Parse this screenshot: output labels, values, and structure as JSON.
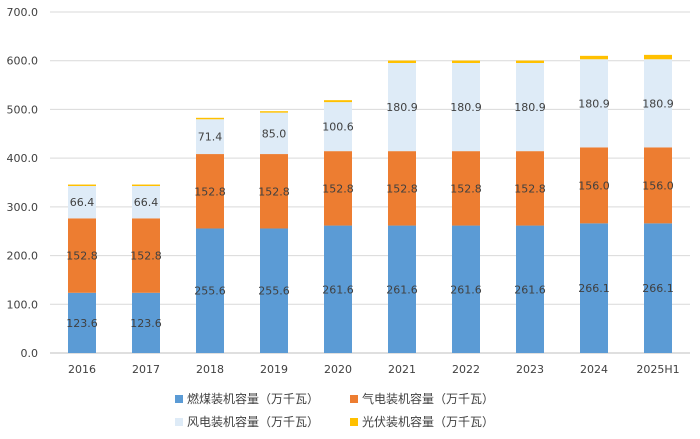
{
  "chart_data": {
    "type": "bar",
    "stacked": true,
    "categories": [
      "2016",
      "2017",
      "2018",
      "2019",
      "2020",
      "2021",
      "2022",
      "2023",
      "2024",
      "2025H1"
    ],
    "series": [
      {
        "name": "燃煤装机容量（万千瓦）",
        "color": "#5b9bd5",
        "values": [
          123.6,
          123.6,
          255.6,
          255.6,
          261.6,
          261.6,
          261.6,
          261.6,
          266.1,
          266.1
        ],
        "labels": [
          "123.6",
          "123.6",
          "255.6",
          "255.6",
          "261.6",
          "261.6",
          "261.6",
          "261.6",
          "266.1",
          "266.1"
        ]
      },
      {
        "name": "气电装机容量（万千瓦）",
        "color": "#ed7d31",
        "values": [
          152.8,
          152.8,
          152.8,
          152.8,
          152.8,
          152.8,
          152.8,
          152.8,
          156.0,
          156.0
        ],
        "labels": [
          "152.8",
          "152.8",
          "152.8",
          "152.8",
          "152.8",
          "152.8",
          "152.8",
          "152.8",
          "156.0",
          "156.0"
        ]
      },
      {
        "name": "风电装机容量（万千瓦）",
        "color": "#deebf7",
        "values": [
          66.4,
          66.4,
          71.4,
          85.0,
          100.6,
          180.9,
          180.9,
          180.9,
          180.9,
          180.9
        ],
        "labels": [
          "66.4",
          "66.4",
          "71.4",
          "85.0",
          "100.6",
          "180.9",
          "180.9",
          "180.9",
          "180.9",
          "180.9"
        ]
      },
      {
        "name": "光伏装机容量（万千瓦）",
        "color": "#ffc000",
        "values": [
          3,
          3,
          3,
          3,
          4,
          5,
          5,
          5,
          7,
          9
        ],
        "labels": []
      }
    ],
    "yticks": [
      "0.0",
      "100.0",
      "200.0",
      "300.0",
      "400.0",
      "500.0",
      "600.0",
      "700.0"
    ],
    "ylim": [
      0,
      700
    ],
    "grid": true,
    "legend_position": "bottom"
  }
}
